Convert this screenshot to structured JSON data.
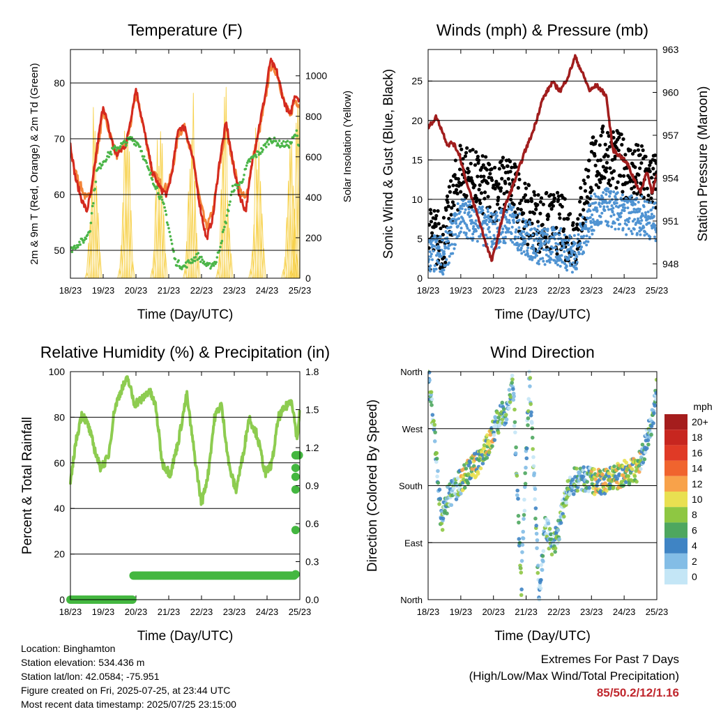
{
  "colors": {
    "t2m": "#d42a1f",
    "t9m": "#f4853a",
    "td": "#4bb548",
    "solar": "#f7d14b",
    "gust": "#000000",
    "wind": "#4f93d2",
    "pressure": "#a11d1d",
    "rh": "#8dcc50",
    "precip": "#44b740",
    "extremes": "#c0272d"
  },
  "x_ticks": [
    "18/23",
    "19/23",
    "20/23",
    "21/23",
    "22/23",
    "23/23",
    "24/23",
    "25/23"
  ],
  "chart_data": [
    {
      "id": "temperature",
      "type": "line",
      "title": "Temperature (F)",
      "xlabel": "Time (Day/UTC)",
      "ylabel": "2m & 9m T (Red, Orange) & 2m Td (Green)",
      "y2label": "Solar Insolation (Yellow)",
      "ylim": [
        45,
        86
      ],
      "y2lim": [
        0,
        1130
      ],
      "yticks": [
        "50",
        "60",
        "70",
        "80"
      ],
      "y2ticks": [
        "0",
        "200",
        "400",
        "600",
        "800",
        "1000"
      ],
      "series": [
        {
          "key": "t2m",
          "x": [
            0,
            0.15,
            0.35,
            0.5,
            0.65,
            0.8,
            1.0,
            1.2,
            1.4,
            1.55,
            1.7,
            1.85,
            2.0,
            2.2,
            2.5,
            2.75,
            2.95,
            3.1,
            3.3,
            3.5,
            3.75,
            3.95,
            4.15,
            4.35,
            4.55,
            4.75,
            4.95,
            5.15,
            5.35,
            5.55,
            5.75,
            5.95,
            6.1,
            6.3,
            6.5,
            6.7,
            6.85,
            7.0
          ],
          "values": [
            69,
            63,
            59,
            57,
            61,
            68,
            76,
            71,
            67,
            68,
            69,
            74,
            79,
            73,
            64,
            61,
            60,
            64,
            72,
            72,
            66,
            58,
            52,
            56,
            66,
            73,
            66,
            60,
            57,
            66,
            72,
            78,
            84,
            82,
            77,
            74,
            78,
            77
          ]
        },
        {
          "key": "t9m",
          "x": [
            0,
            0.15,
            0.35,
            0.5,
            0.65,
            0.8,
            1.0,
            1.2,
            1.4,
            1.55,
            1.7,
            1.85,
            2.0,
            2.2,
            2.5,
            2.75,
            2.95,
            3.1,
            3.3,
            3.5,
            3.75,
            3.95,
            4.15,
            4.35,
            4.55,
            4.75,
            4.95,
            5.15,
            5.35,
            5.55,
            5.75,
            5.95,
            6.1,
            6.3,
            6.5,
            6.7,
            6.85,
            7.0
          ],
          "values": [
            68,
            64,
            61,
            59,
            61,
            67,
            75,
            71,
            67,
            68,
            69,
            73,
            78,
            73,
            64,
            62,
            61,
            64,
            71,
            72,
            66,
            59,
            54,
            57,
            65,
            72,
            66,
            61,
            59,
            66,
            71,
            77,
            83,
            82,
            77,
            74,
            77,
            76
          ]
        },
        {
          "key": "td",
          "x": [
            0,
            0.2,
            0.45,
            0.6,
            0.8,
            1.0,
            1.3,
            1.6,
            1.85,
            2.1,
            2.4,
            2.65,
            2.9,
            3.2,
            3.45,
            3.65,
            3.9,
            4.2,
            4.45,
            4.7,
            4.95,
            5.2,
            5.45,
            5.65,
            5.85,
            6.1,
            6.4,
            6.7,
            6.9,
            7.0
          ],
          "values": [
            50,
            51,
            52,
            54,
            64,
            66,
            68,
            69,
            70,
            69,
            64,
            61,
            57,
            48,
            47,
            48,
            49,
            47,
            48,
            54,
            61,
            62,
            66,
            67,
            68,
            70,
            69,
            69,
            71,
            68
          ]
        },
        {
          "key": "solar",
          "peak_days": [
            0.72,
            1.72,
            2.72,
            3.72,
            4.72,
            5.72,
            6.72,
            6.96
          ],
          "peaks": [
            1000,
            1070,
            1010,
            1050,
            1060,
            1040,
            1000,
            1100
          ]
        }
      ]
    },
    {
      "id": "winds",
      "type": "scatter",
      "title": "Winds (mph) & Pressure (mb)",
      "xlabel": "Time (Day/UTC)",
      "ylabel": "Sonic Wind & Gust (Blue, Black)",
      "y2label": "Station Pressure (Maroon)",
      "ylim": [
        0,
        29
      ],
      "y2lim": [
        947,
        963
      ],
      "yticks": [
        "0",
        "5",
        "10",
        "15",
        "20",
        "25"
      ],
      "y2ticks": [
        "948",
        "951",
        "954",
        "957",
        "960",
        "963"
      ],
      "series": [
        {
          "key": "pressure",
          "x": [
            0,
            0.25,
            0.45,
            0.6,
            0.75,
            0.95,
            1.2,
            1.5,
            1.8,
            1.95,
            2.15,
            2.35,
            2.65,
            2.95,
            3.2,
            3.5,
            3.8,
            4.05,
            4.3,
            4.5,
            4.75,
            4.95,
            5.15,
            5.45,
            5.65,
            5.9,
            6.1,
            6.25,
            6.5,
            6.7,
            6.85,
            7.0
          ],
          "values": [
            957.5,
            958.3,
            957.2,
            956.3,
            956.5,
            955.7,
            953.5,
            951.5,
            949.2,
            948.2,
            950.0,
            952.0,
            953.8,
            955.8,
            957.2,
            959.5,
            960.7,
            960.1,
            961.2,
            962.5,
            961.2,
            960.1,
            960.5,
            959.8,
            956.0,
            955.5,
            955.0,
            954.2,
            953.0,
            954.5,
            953.0,
            954.2
          ]
        },
        {
          "key": "wind",
          "x": [
            0,
            0.5,
            1.0,
            1.5,
            2.0,
            2.5,
            3.0,
            3.5,
            4.0,
            4.5,
            5.0,
            5.5,
            6.0,
            6.5,
            7.0
          ],
          "values": [
            3,
            3,
            8,
            7,
            6,
            7,
            5,
            4,
            4,
            3,
            8,
            9,
            8,
            8,
            7
          ]
        },
        {
          "key": "gust",
          "x": [
            0,
            0.5,
            1.0,
            1.5,
            2.0,
            2.5,
            3.0,
            3.5,
            4.0,
            4.5,
            5.0,
            5.5,
            6.0,
            6.5,
            7.0
          ],
          "values": [
            5,
            5,
            14,
            12,
            11,
            12,
            8,
            7,
            7,
            5,
            14,
            16,
            14,
            13,
            12
          ]
        }
      ]
    },
    {
      "id": "humidity",
      "type": "line",
      "title": "Relative Humidity (%) & Precipitation (in)",
      "xlabel": "Time (Day/UTC)",
      "ylabel": "Percent & Total Rainfall",
      "ylim": [
        0,
        100
      ],
      "y2lim": [
        0,
        1.8
      ],
      "yticks": [
        "0",
        "20",
        "40",
        "60",
        "80",
        "100"
      ],
      "y2ticks": [
        "0.0",
        "0.3",
        "0.6",
        "0.9",
        "1.2",
        "1.5",
        "1.8"
      ],
      "series": [
        {
          "key": "rh",
          "x": [
            0,
            0.15,
            0.35,
            0.55,
            0.7,
            0.9,
            1.15,
            1.35,
            1.55,
            1.75,
            1.95,
            2.2,
            2.4,
            2.6,
            2.8,
            3.05,
            3.3,
            3.55,
            3.8,
            4.0,
            4.2,
            4.4,
            4.6,
            4.85,
            5.05,
            5.25,
            5.45,
            5.7,
            5.95,
            6.15,
            6.35,
            6.55,
            6.75,
            6.92,
            7.0
          ],
          "values": [
            50,
            68,
            82,
            76,
            68,
            58,
            62,
            84,
            92,
            97,
            86,
            88,
            92,
            85,
            60,
            55,
            70,
            90,
            62,
            42,
            55,
            80,
            86,
            58,
            48,
            62,
            80,
            72,
            55,
            60,
            80,
            84,
            88,
            70,
            84
          ]
        },
        {
          "key": "precip",
          "x": [
            0,
            1.9,
            1.92,
            6.85,
            6.87,
            6.89,
            6.9,
            6.92,
            6.95,
            7.0
          ],
          "values": [
            0.0,
            0.0,
            0.19,
            0.19,
            0.2,
            0.55,
            0.85,
            1.0,
            1.14,
            1.14
          ]
        }
      ]
    },
    {
      "id": "direction",
      "type": "scatter",
      "title": "Wind Direction",
      "xlabel": "Time (Day/UTC)",
      "ylabel": "Direction (Colored By Speed)",
      "ylim": [
        0,
        360
      ],
      "yticks": [
        "North",
        "East",
        "South",
        "West",
        "North"
      ],
      "legend": {
        "title": "mph",
        "labels": [
          "20+",
          "18",
          "16",
          "14",
          "12",
          "10",
          "8",
          "6",
          "4",
          "2",
          "0"
        ],
        "colors": [
          "#a51d1d",
          "#c7261f",
          "#e03a26",
          "#f0642e",
          "#f8a24a",
          "#e9e051",
          "#8ec742",
          "#4ea75f",
          "#3f84c4",
          "#83bde6",
          "#c4e6f6"
        ]
      },
      "series": [
        {
          "key": "direction",
          "x": [
            0.0,
            0.2,
            0.4,
            0.6,
            0.9,
            1.2,
            1.5,
            1.8,
            2.1,
            2.4,
            2.6,
            2.85,
            3.1,
            3.4,
            3.6,
            3.8,
            4.0,
            4.2,
            4.5,
            4.8,
            5.2,
            5.6,
            6.0,
            6.4,
            6.8,
            7.0
          ],
          "values": [
            360,
            260,
            120,
            160,
            180,
            200,
            215,
            240,
            280,
            300,
            340,
            15,
            360,
            10,
            120,
            80,
            110,
            160,
            190,
            190,
            185,
            190,
            200,
            205,
            270,
            330
          ]
        }
      ]
    }
  ],
  "info": {
    "location": "Location: Binghamton",
    "elevation": "Station elevation: 534.436 m",
    "latlon": "Station lat/lon: 42.0584; -75.951",
    "created": "Figure created on Fri, 2025-07-25, at 23:44 UTC",
    "recent": "Most recent data timestamp: 2025/07/25 23:15:00"
  },
  "extremes": {
    "line1": "Extremes For Past 7 Days",
    "line2": "(High/Low/Max Wind/Total Precipitation)",
    "values": "85/50.2/12/1.16"
  }
}
